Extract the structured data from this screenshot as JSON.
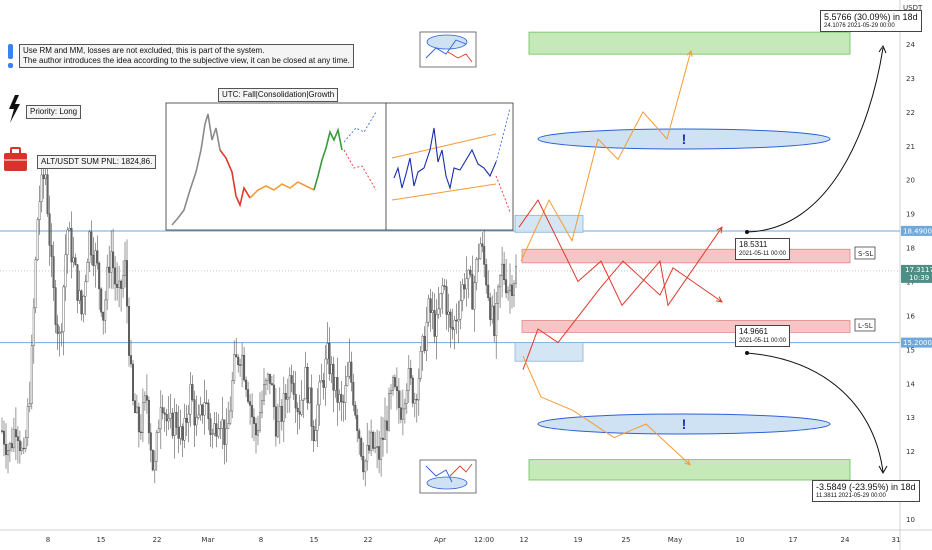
{
  "chart_data": {
    "type": "candlestick",
    "currency_label": "USDT",
    "y_ticks": [
      10,
      11,
      12,
      13,
      14,
      15,
      16,
      17,
      18,
      19,
      20,
      21,
      22,
      23,
      24
    ],
    "x_ticks": [
      "8",
      "15",
      "22",
      "Mar",
      "8",
      "15",
      "22",
      "Apr",
      "12:00",
      "12",
      "19",
      "25",
      "May",
      "10",
      "17",
      "24",
      "31"
    ],
    "ylim": [
      9.6,
      25.1
    ],
    "price_labels": {
      "upper_level": "18.4900",
      "current": "17.3117",
      "current_time": "10:39",
      "lower_level": "15.2000"
    },
    "levels": {
      "upper": 18.49,
      "lower": 15.2
    },
    "price_path": [
      {
        "x": 0,
        "y": 12.6
      },
      {
        "x": 2,
        "y": 12.0
      },
      {
        "x": 4,
        "y": 12.9
      },
      {
        "x": 6,
        "y": 11.6
      },
      {
        "x": 8,
        "y": 14.2
      },
      {
        "x": 9,
        "y": 19.2
      },
      {
        "x": 10,
        "y": 20.3
      },
      {
        "x": 11,
        "y": 16.8
      },
      {
        "x": 12,
        "y": 15.2
      },
      {
        "x": 13,
        "y": 18.6
      },
      {
        "x": 14,
        "y": 17.4
      },
      {
        "x": 15,
        "y": 16.0
      },
      {
        "x": 16,
        "y": 18.4
      },
      {
        "x": 17,
        "y": 17.6
      },
      {
        "x": 18,
        "y": 16.0
      },
      {
        "x": 19,
        "y": 18.0
      },
      {
        "x": 20,
        "y": 16.4
      },
      {
        "x": 21,
        "y": 17.4
      },
      {
        "x": 22,
        "y": 13.4
      },
      {
        "x": 23,
        "y": 12.6
      },
      {
        "x": 24,
        "y": 13.6
      },
      {
        "x": 25,
        "y": 11.2
      },
      {
        "x": 26,
        "y": 13.8
      },
      {
        "x": 27,
        "y": 12.6
      },
      {
        "x": 28,
        "y": 13.0
      },
      {
        "x": 29,
        "y": 12.2
      },
      {
        "x": 30,
        "y": 13.8
      },
      {
        "x": 31,
        "y": 12.6
      },
      {
        "x": 32,
        "y": 13.6
      },
      {
        "x": 33,
        "y": 12.4
      },
      {
        "x": 34,
        "y": 13.2
      },
      {
        "x": 35,
        "y": 12.2
      },
      {
        "x": 36,
        "y": 14.4
      },
      {
        "x": 37,
        "y": 15.0
      },
      {
        "x": 38,
        "y": 13.8
      },
      {
        "x": 39,
        "y": 12.4
      },
      {
        "x": 40,
        "y": 13.6
      },
      {
        "x": 41,
        "y": 14.2
      },
      {
        "x": 42,
        "y": 12.6
      },
      {
        "x": 43,
        "y": 13.4
      },
      {
        "x": 44,
        "y": 14.4
      },
      {
        "x": 45,
        "y": 13.2
      },
      {
        "x": 46,
        "y": 14.2
      },
      {
        "x": 47,
        "y": 12.6
      },
      {
        "x": 48,
        "y": 13.8
      },
      {
        "x": 49,
        "y": 14.8
      },
      {
        "x": 50,
        "y": 13.8
      },
      {
        "x": 51,
        "y": 13.2
      },
      {
        "x": 52,
        "y": 14.4
      },
      {
        "x": 53,
        "y": 13.0
      },
      {
        "x": 54,
        "y": 11.6
      },
      {
        "x": 55,
        "y": 12.2
      },
      {
        "x": 56,
        "y": 11.8
      },
      {
        "x": 57,
        "y": 12.8
      },
      {
        "x": 58,
        "y": 13.8
      },
      {
        "x": 59,
        "y": 13.2
      },
      {
        "x": 60,
        "y": 14.2
      },
      {
        "x": 61,
        "y": 13.6
      },
      {
        "x": 62,
        "y": 14.8
      },
      {
        "x": 63,
        "y": 16.2
      },
      {
        "x": 64,
        "y": 15.6
      },
      {
        "x": 65,
        "y": 17.0
      },
      {
        "x": 66,
        "y": 15.4
      },
      {
        "x": 67,
        "y": 16.2
      },
      {
        "x": 68,
        "y": 17.2
      },
      {
        "x": 69,
        "y": 16.6
      },
      {
        "x": 70,
        "y": 18.2
      },
      {
        "x": 71,
        "y": 17.0
      },
      {
        "x": 72,
        "y": 15.4
      },
      {
        "x": 73,
        "y": 17.4
      },
      {
        "x": 74,
        "y": 16.8
      },
      {
        "x": 75,
        "y": 17.3
      }
    ],
    "projections": {
      "orange_up": [
        [
          0,
          17.6
        ],
        [
          1,
          19.4
        ],
        [
          2,
          18.2
        ],
        [
          3,
          21.2
        ],
        [
          4,
          20.6
        ],
        [
          5,
          22.0
        ],
        [
          6,
          21.2
        ],
        [
          7,
          23.8
        ]
      ],
      "red_upper": [
        [
          0,
          18.6
        ],
        [
          1,
          19.4
        ],
        [
          2,
          17.0
        ],
        [
          3,
          17.6
        ],
        [
          4,
          16.3
        ],
        [
          5,
          17.6
        ],
        [
          6,
          16.3
        ],
        [
          7,
          18.6
        ]
      ],
      "red_lower": [
        [
          0,
          14.4
        ],
        [
          1,
          15.6
        ],
        [
          2,
          15.2
        ],
        [
          3,
          16.8
        ],
        [
          4,
          17.6
        ],
        [
          5,
          16.6
        ],
        [
          6,
          17.4
        ],
        [
          7,
          16.4
        ]
      ],
      "orange_down": [
        [
          0,
          14.8
        ],
        [
          1,
          13.6
        ],
        [
          2,
          13.2
        ],
        [
          3,
          12.4
        ],
        [
          4,
          12.8
        ],
        [
          5,
          11.6
        ]
      ]
    },
    "zones": {
      "upper_green": "",
      "s_sl": "S-SL",
      "l_sl": "L-SL",
      "lower_green": ""
    },
    "callouts": {
      "top_target_line1": "5.5766 (30.09%) in 18d",
      "top_target_line2": "24.1076     2021-05-29  00:00",
      "upper_point_line1": "18.5311",
      "upper_point_line2": "2021-05-11 00:00",
      "lower_point_line1": "14.9661",
      "lower_point_line2": "2021-05-11 00:00",
      "bottom_target_line1": "-3.5849 (-23.95%) in 18d",
      "bottom_target_line2": "11.3811     2021-05-29  00:00"
    },
    "markers": {
      "exclaim_upper": "!",
      "exclaim_lower": "!"
    },
    "notes": {
      "intro_line1": "Use RM and MM, losses are not excluded, this is part of the system.",
      "intro_line2": "The author introduces the idea according to the subjective view, it can be closed at any time.",
      "priority": "Priority: Long",
      "pnl": "ALT/USDT SUM PNL: 1824,86.",
      "panel_title": "UTC: Fall|Consolidation|Growth"
    },
    "colors": {
      "up_candle": "#444444",
      "down_candle": "#666666",
      "level_line": "#6fa8dc",
      "green_zone": "#b7e4a8",
      "red_zone": "#f4b8b8",
      "blue_zone": "#cfe2f3",
      "orange_path": "#f39c35",
      "red_path": "#e0392b",
      "current_price_bg": "#4d8f85",
      "exclaim_blue": "#3b82f6",
      "toolbox_red": "#d9322a"
    }
  }
}
